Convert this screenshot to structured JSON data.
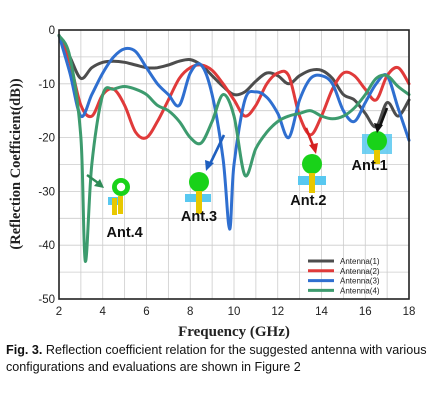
{
  "chart_data": {
    "type": "line",
    "xlabel": "Frequency (GHz)",
    "ylabel": "(Reflection Coefficient(dB))",
    "xlim": [
      2,
      18
    ],
    "ylim": [
      -50,
      0
    ],
    "xticks": [
      "2",
      "4",
      "6",
      "8",
      "10",
      "12",
      "14",
      "16",
      "18"
    ],
    "yticks": [
      "0",
      "-10",
      "-20",
      "-30",
      "-40",
      "-50"
    ],
    "grid": true,
    "legend_position": "bottom-right",
    "series": [
      {
        "name": "Antenna(1)",
        "color": "#4d4d4d",
        "x": [
          2,
          2.5,
          3,
          3.5,
          4,
          4.5,
          5,
          5.5,
          6,
          6.5,
          7,
          7.5,
          8,
          8.5,
          9,
          9.5,
          10,
          10.5,
          11,
          11.5,
          12,
          12.5,
          13,
          13.5,
          14,
          14.5,
          15,
          15.5,
          16,
          16.5,
          17,
          17.5,
          18
        ],
        "y": [
          -1,
          -5,
          -9,
          -7,
          -6,
          -5.8,
          -6,
          -6.5,
          -7,
          -7,
          -6.5,
          -5.8,
          -5.5,
          -6.5,
          -8.5,
          -10.5,
          -12,
          -11.5,
          -9.5,
          -8,
          -8.5,
          -10,
          -8.5,
          -7.5,
          -7.5,
          -9,
          -12,
          -13,
          -15.5,
          -18,
          -13.5,
          -16,
          -13
        ]
      },
      {
        "name": "Antenna(2)",
        "color": "#e03a3a",
        "x": [
          2,
          2.5,
          3,
          3.5,
          4,
          4.5,
          5,
          5.5,
          6,
          6.5,
          7,
          7.5,
          8,
          8.5,
          9,
          9.5,
          10,
          10.5,
          11,
          11.5,
          12,
          12.5,
          13,
          13.5,
          14,
          14.5,
          15,
          15.5,
          16,
          16.5,
          17,
          17.5,
          18
        ],
        "y": [
          -1,
          -6,
          -14,
          -16,
          -12,
          -11,
          -14,
          -19,
          -20,
          -17,
          -13,
          -9,
          -7,
          -6.5,
          -7.5,
          -10,
          -13,
          -16,
          -14,
          -10,
          -8,
          -8.5,
          -16,
          -19.5,
          -16,
          -11,
          -8,
          -8.5,
          -11,
          -13,
          -8.5,
          -7,
          -10
        ]
      },
      {
        "name": "Antenna(3)",
        "color": "#2f6fd0",
        "x": [
          2,
          2.5,
          3,
          3.5,
          4,
          4.5,
          5,
          5.5,
          6,
          6.5,
          7,
          7.5,
          8,
          8.5,
          9,
          9.5,
          9.8,
          10,
          10.5,
          11,
          11.5,
          12,
          12.5,
          13,
          13.5,
          14,
          14.5,
          15,
          15.5,
          16,
          16.5,
          17,
          17.5,
          18
        ],
        "y": [
          -1,
          -8,
          -16,
          -12,
          -8,
          -5,
          -3.5,
          -4,
          -7,
          -10,
          -12,
          -14,
          -8,
          -6.5,
          -12,
          -24,
          -37,
          -25,
          -13,
          -11.5,
          -12.5,
          -15.5,
          -20,
          -13,
          -9,
          -8.5,
          -10,
          -15,
          -17,
          -13.5,
          -10,
          -8.5,
          -14.5,
          -20.5
        ]
      },
      {
        "name": "Antenna(4)",
        "color": "#3d9b6e",
        "x": [
          2,
          2.5,
          3,
          3.2,
          3.5,
          4,
          4.5,
          5,
          5.5,
          6,
          6.5,
          7,
          7.5,
          8,
          8.5,
          9,
          9.5,
          10,
          10.5,
          11,
          11.5,
          12,
          12.5,
          13,
          13.5,
          14,
          14.5,
          15,
          15.5,
          16,
          16.5,
          17,
          17.5,
          18
        ],
        "y": [
          -1,
          -5,
          -20,
          -43,
          -25,
          -12,
          -11,
          -10.5,
          -11,
          -12,
          -14,
          -15,
          -17,
          -20,
          -21,
          -17,
          -12,
          -16,
          -27,
          -22,
          -19,
          -17,
          -16,
          -15.5,
          -15,
          -16,
          -16.5,
          -16,
          -14.5,
          -12,
          -9,
          -8.5,
          -10.5,
          -12
        ]
      }
    ],
    "annotations": [
      {
        "text": "Ant.1",
        "x": 16.2,
        "y": -26
      },
      {
        "text": "Ant.2",
        "x": 13.4,
        "y": -32.5
      },
      {
        "text": "Ant.3",
        "x": 8.4,
        "y": -35.5
      },
      {
        "text": "Ant.4",
        "x": 5.0,
        "y": -38.5
      }
    ]
  },
  "caption": {
    "label": "Fig. 3.",
    "text": " Reflection coefficient relation for the suggested antenna with various configurations and evaluations are shown in Figure 2"
  },
  "colors": {
    "grid": "#cccccc",
    "arrow_green": "#2e8b57",
    "arrow_blue": "#1f5fbf",
    "arrow_red": "#d62020",
    "arrow_black": "#111111",
    "antenna_green": "#19d219",
    "antenna_yellow": "#e8c800",
    "antenna_cyan": "#58c8f0"
  }
}
